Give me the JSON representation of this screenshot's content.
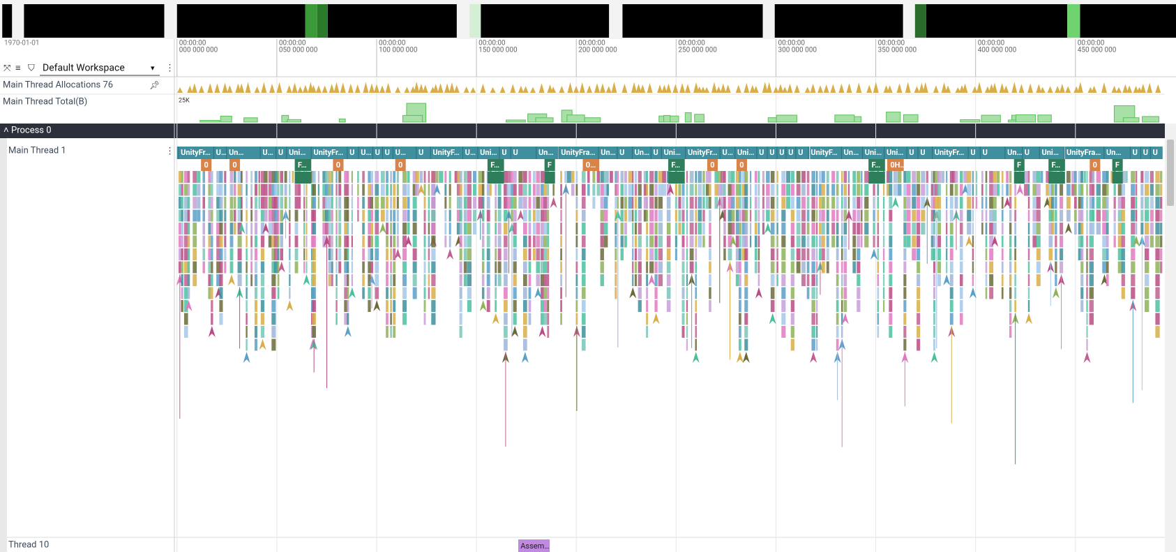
{
  "ruler": {
    "date": "1970-01-01",
    "ticks": [
      {
        "time": "00:00:00",
        "ns": "000 000 000"
      },
      {
        "time": "00:00:00",
        "ns": "050 000 000"
      },
      {
        "time": "00:00:00",
        "ns": "100 000 000"
      },
      {
        "time": "00:00:00",
        "ns": "150 000 000"
      },
      {
        "time": "00:00:00",
        "ns": "200 000 000"
      },
      {
        "time": "00:00:00",
        "ns": "250 000 000"
      },
      {
        "time": "00:00:00",
        "ns": "300 000 000"
      },
      {
        "time": "00:00:00",
        "ns": "350 000 000"
      },
      {
        "time": "00:00:00",
        "ns": "400 000 000"
      },
      {
        "time": "00:00:00",
        "ns": "450 000 000"
      }
    ]
  },
  "toolbar": {
    "workspace": "Default Workspace"
  },
  "tracks": [
    {
      "name": "Main Thread Allocations 76"
    },
    {
      "name": "Main Thread Total(B)",
      "scale_label": "25K"
    }
  ],
  "process": {
    "name": "Process 0",
    "threads": [
      {
        "name": "Main Thread 1",
        "slices": [
          "UnityFr…",
          "U…",
          "Un…",
          "U…",
          "U",
          "Uni…",
          "UnityFr…",
          "U",
          "U…",
          "U",
          "U",
          "U…",
          "U",
          "UnityF…",
          "U…",
          "Uni…",
          "U",
          "U",
          "Un…",
          "UnityFra…",
          "Un…",
          "U",
          "Un…",
          "U",
          "Uni…",
          "UnityFr…",
          "U…",
          "Uni…",
          "U",
          "U",
          "U",
          "U",
          "U",
          "UnityF…",
          "Un…",
          "Uni…",
          "Uni…",
          "U",
          "U",
          "UnityFr…",
          "U",
          "U",
          "Un…",
          "U",
          "Uni…",
          "UnityFra…",
          "Un…",
          "U",
          "U",
          "U"
        ],
        "sub_slices": [
          "0",
          "0",
          "F…",
          "0",
          "0",
          "F…",
          "F",
          "0…",
          "F…",
          "0",
          "0",
          "F…",
          "0H…",
          "F",
          "F…",
          "0",
          "F"
        ]
      },
      {
        "name": "Thread 10",
        "slices": [
          "Assem…"
        ]
      }
    ]
  }
}
